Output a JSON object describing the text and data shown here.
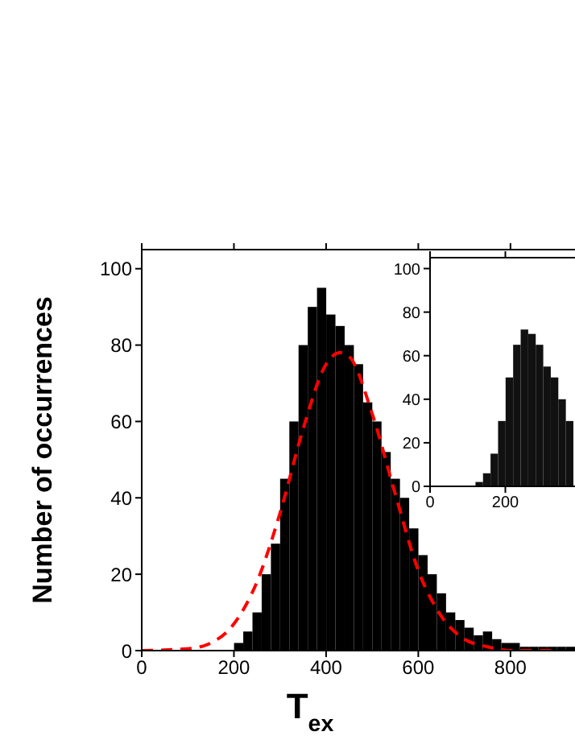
{
  "chart_data": [
    {
      "type": "histogram",
      "xlabel": "T$_{ex}$",
      "ylabel": "Number of occurrences",
      "xlim": [
        0,
        940
      ],
      "ylim": [
        0,
        105
      ],
      "xticks": [
        0,
        200,
        400,
        600,
        800
      ],
      "yticks": [
        0,
        20,
        40,
        60,
        80,
        100
      ],
      "bins": [
        0,
        20,
        40,
        60,
        80,
        100,
        120,
        140,
        160,
        180,
        200,
        220,
        240,
        260,
        280,
        300,
        320,
        340,
        360,
        380,
        400,
        420,
        440,
        460,
        480,
        500,
        520,
        540,
        560,
        580,
        600,
        620,
        640,
        660,
        680,
        700,
        720,
        740,
        760,
        780,
        800,
        820,
        840,
        860,
        880,
        900,
        920,
        940
      ],
      "series": [
        {
          "type": "histogram",
          "color": "#000000",
          "values": [
            0,
            0,
            0,
            0,
            0,
            0,
            0,
            0,
            0,
            0,
            2,
            5,
            10,
            20,
            28,
            45,
            60,
            80,
            90,
            95,
            88,
            85,
            80,
            75,
            65,
            60,
            52,
            45,
            40,
            32,
            25,
            20,
            15,
            10,
            8,
            6,
            4,
            5,
            3,
            2,
            2,
            1,
            1,
            1,
            1,
            1,
            1
          ]
        },
        {
          "type": "line",
          "color": "#ff0000",
          "line_style": "dashed",
          "x": [
            0,
            100,
            150,
            200,
            250,
            300,
            350,
            400,
            430,
            450,
            500,
            550,
            600,
            650,
            700,
            750,
            800,
            900
          ],
          "values": [
            0,
            0.5,
            2,
            7,
            18,
            36,
            58,
            75,
            78,
            77,
            62,
            41,
            21,
            9,
            3,
            1,
            0,
            0
          ]
        }
      ]
    },
    {
      "type": "histogram",
      "xlim": [
        0,
        385
      ],
      "ylim": [
        0,
        105
      ],
      "xticks": [
        0,
        200
      ],
      "yticks": [
        0,
        20,
        40,
        60,
        80,
        100
      ],
      "bins": [
        0,
        20,
        40,
        60,
        80,
        100,
        120,
        140,
        160,
        180,
        200,
        220,
        240,
        260,
        280,
        300,
        320,
        340,
        360,
        380
      ],
      "series": [
        {
          "type": "histogram",
          "color": "#111111",
          "values": [
            0,
            0,
            0,
            0,
            0,
            0,
            2,
            6,
            15,
            30,
            50,
            65,
            72,
            70,
            65,
            55,
            50,
            40,
            30
          ]
        }
      ]
    }
  ]
}
